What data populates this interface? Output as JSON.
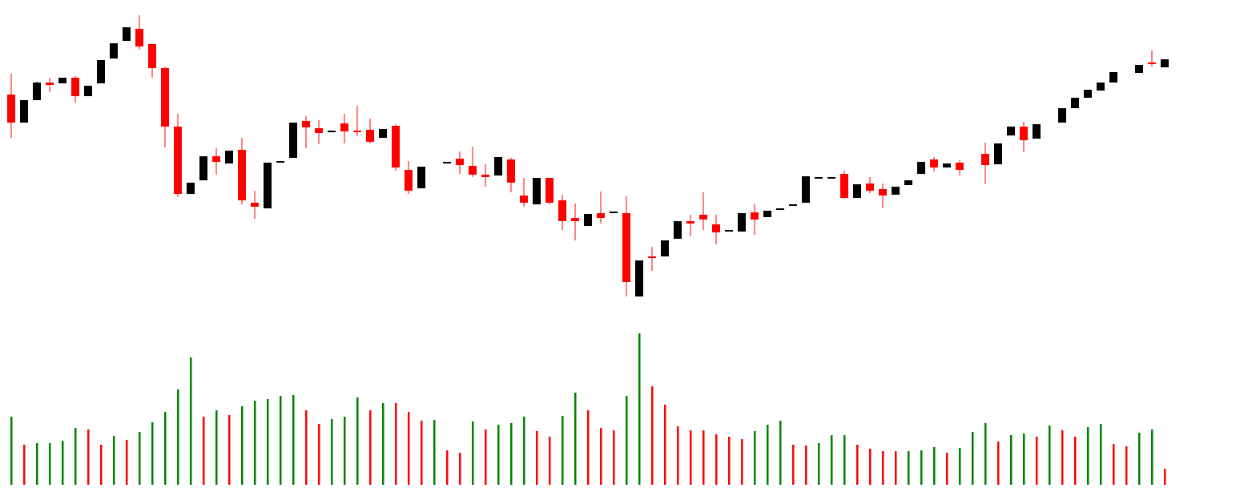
{
  "chart_data": {
    "type": "candlestick",
    "up_color": "#000000",
    "down_color": "#ff0000",
    "ylim": [
      25,
      385
    ],
    "volume_ylim": [
      0,
      190
    ],
    "open": [
      282,
      247,
      275,
      297,
      296,
      303,
      280,
      296,
      327,
      349,
      364,
      345,
      315,
      242,
      158,
      175,
      205,
      196,
      213,
      147,
      140,
      197,
      203,
      249,
      240,
      235,
      246,
      237,
      238,
      228,
      243,
      188,
      165,
      null,
      196,
      202,
      193,
      182,
      181,
      201,
      156,
      145,
      178,
      150,
      128,
      118,
      134,
      134,
      134,
      30,
      80,
      80,
      102,
      124,
      132,
      120,
      111,
      111,
      135,
      129,
      138,
      143,
      147,
      177,
      177,
      183,
      153,
      171,
      164,
      157,
      169,
      183,
      201,
      191,
      197,
      null,
      208,
      195,
      231,
      242,
      227,
      null,
      247,
      265,
      278,
      287,
      297,
      null,
      309,
      322,
      316
    ],
    "high": [
      308,
      275,
      298,
      303,
      303,
      305,
      293,
      325,
      346,
      366,
      381,
      345,
      317,
      258,
      172,
      205,
      215,
      212,
      228,
      162,
      197,
      199,
      247,
      255,
      250,
      237,
      258,
      268,
      252,
      239,
      245,
      199,
      192,
      null,
      198,
      211,
      217,
      195,
      204,
      203,
      178,
      178,
      178,
      157,
      146,
      133,
      161,
      136,
      155,
      75,
      92,
      100,
      124,
      132,
      160,
      132,
      113,
      134,
      146,
      137,
      140,
      145,
      180,
      179,
      179,
      187,
      170,
      179,
      171,
      167,
      175,
      198,
      204,
      196,
      200,
      null,
      222,
      221,
      242,
      248,
      245,
      null,
      265,
      278,
      288,
      297,
      310,
      null,
      319,
      337,
      326
    ],
    "low": [
      228,
      247,
      275,
      285,
      296,
      272,
      280,
      296,
      327,
      349,
      338,
      303,
      216,
      154,
      158,
      175,
      182,
      196,
      145,
      127,
      140,
      197,
      203,
      215,
      220,
      235,
      221,
      230,
      221,
      228,
      187,
      158,
      165,
      null,
      196,
      183,
      179,
      167,
      181,
      160,
      142,
      145,
      145,
      113,
      100,
      118,
      121,
      134,
      30,
      30,
      62,
      80,
      102,
      105,
      113,
      95,
      111,
      111,
      107,
      129,
      138,
      143,
      147,
      177,
      177,
      152,
      153,
      159,
      140,
      157,
      169,
      183,
      186,
      191,
      181,
      null,
      170,
      195,
      231,
      210,
      227,
      null,
      247,
      265,
      278,
      287,
      297,
      null,
      309,
      317,
      316
    ],
    "close": [
      247,
      275,
      297,
      294,
      303,
      280,
      293,
      325,
      346,
      366,
      342,
      315,
      242,
      158,
      172,
      205,
      198,
      212,
      150,
      142,
      197,
      199,
      247,
      241,
      234,
      237,
      236,
      235,
      223,
      239,
      191,
      162,
      192,
      null,
      198,
      194,
      182,
      179,
      204,
      172,
      147,
      178,
      147,
      124,
      124,
      133,
      128,
      136,
      48,
      75,
      78,
      100,
      124,
      121,
      126,
      110,
      113,
      134,
      126,
      137,
      140,
      145,
      180,
      179,
      179,
      153,
      170,
      162,
      156,
      167,
      175,
      198,
      191,
      196,
      188,
      null,
      194,
      221,
      242,
      225,
      245,
      null,
      265,
      278,
      288,
      297,
      310,
      null,
      319,
      320,
      326
    ],
    "volume": [
      85,
      50,
      52,
      52,
      55,
      71,
      69,
      50,
      61,
      56,
      66,
      78,
      91,
      119,
      159,
      85,
      93,
      87,
      98,
      105,
      107,
      111,
      112,
      93,
      76,
      82,
      85,
      109,
      93,
      102,
      102,
      91,
      80,
      81,
      43,
      40,
      79,
      69,
      75,
      77,
      85,
      67,
      60,
      86,
      115,
      93,
      71,
      68,
      111,
      189,
      123,
      100,
      73,
      68,
      68,
      63,
      60,
      57,
      67,
      75,
      80,
      50,
      49,
      52,
      62,
      62,
      50,
      45,
      42,
      42,
      42,
      43,
      47,
      40,
      46,
      66,
      77,
      54,
      62,
      64,
      60,
      74,
      68,
      60,
      72,
      76,
      51,
      48,
      65,
      69,
      20
    ],
    "volume_colors": [
      "#008000",
      "#ff0000",
      "#008000",
      "#008000",
      "#008000",
      "#008000",
      "#ff0000",
      "#ff0000",
      "#008000",
      "#ff0000",
      "#008000",
      "#008000",
      "#008000",
      "#008000",
      "#008000",
      "#ff0000",
      "#008000",
      "#ff0000",
      "#008000",
      "#008000",
      "#008000",
      "#008000",
      "#008000",
      "#ff0000",
      "#ff0000",
      "#008000",
      "#008000",
      "#008000",
      "#ff0000",
      "#008000",
      "#ff0000",
      "#ff0000",
      "#ff0000",
      "#008000",
      "#ff0000",
      "#ff0000",
      "#008000",
      "#ff0000",
      "#008000",
      "#008000",
      "#008000",
      "#ff0000",
      "#ff0000",
      "#008000",
      "#008000",
      "#ff0000",
      "#ff0000",
      "#ff0000",
      "#008000",
      "#008000",
      "#ff0000",
      "#ff0000",
      "#ff0000",
      "#ff0000",
      "#ff0000",
      "#ff0000",
      "#ff0000",
      "#ff0000",
      "#008000",
      "#008000",
      "#008000",
      "#ff0000",
      "#ff0000",
      "#008000",
      "#008000",
      "#008000",
      "#ff0000",
      "#ff0000",
      "#ff0000",
      "#ff0000",
      "#008000",
      "#008000",
      "#008000",
      "#ff0000",
      "#008000",
      "#008000",
      "#008000",
      "#ff0000",
      "#008000",
      "#008000",
      "#ff0000",
      "#008000",
      "#ff0000",
      "#ff0000",
      "#008000",
      "#008000",
      "#ff0000",
      "#ff0000",
      "#008000",
      "#008000",
      "#ff0000"
    ]
  }
}
